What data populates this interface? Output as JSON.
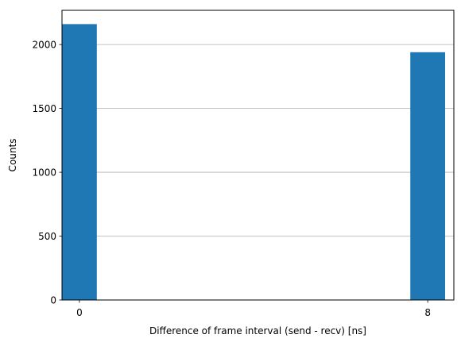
{
  "chart_data": {
    "type": "bar",
    "title": "",
    "xlabel": "Difference of frame interval (send - recv) [ns]",
    "ylabel": "Counts",
    "x": [
      0,
      8
    ],
    "values": [
      2160,
      1940
    ],
    "bar_width": 0.8,
    "xlim": [
      -0.4,
      8.6
    ],
    "ylim": [
      0,
      2268
    ],
    "xticks": [
      0,
      8
    ],
    "yticks": [
      0,
      500,
      1000,
      1500,
      2000
    ],
    "grid": "y-major",
    "legend": "none",
    "colors": {
      "bar": "#1f77b4",
      "grid": "#b0b0b0",
      "axis": "#000000",
      "background": "#ffffff"
    }
  }
}
